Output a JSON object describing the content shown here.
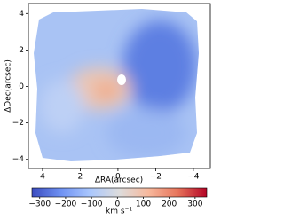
{
  "chart_data": {
    "type": "velocity-map",
    "xlabel": "ΔRA(arcsec)",
    "ylabel": "ΔDec(arcsec)",
    "xlim": [
      4.75,
      -4.9
    ],
    "ylim": [
      -4.5,
      4.55
    ],
    "xticks": [
      4,
      2,
      0,
      {
        "value": -2,
        "label": "−2"
      },
      {
        "value": -4,
        "label": "−4"
      }
    ],
    "yticks": [
      {
        "value": -4,
        "label": "−4"
      },
      {
        "value": -2,
        "label": "−2"
      },
      0,
      2,
      4
    ],
    "colorbar": {
      "label": "km s⁻¹",
      "lim": [
        -330,
        345
      ],
      "ticks": [
        {
          "value": -300,
          "label": "−300"
        },
        {
          "value": -200,
          "label": "−200"
        },
        {
          "value": -100,
          "label": "−100"
        },
        0,
        100,
        200,
        300
      ],
      "colors": [
        "#3b4cc0",
        "#6f92f3",
        "#aac7fd",
        "#dddcdc",
        "#f7b89c",
        "#e7745b",
        "#b40426"
      ]
    }
  }
}
